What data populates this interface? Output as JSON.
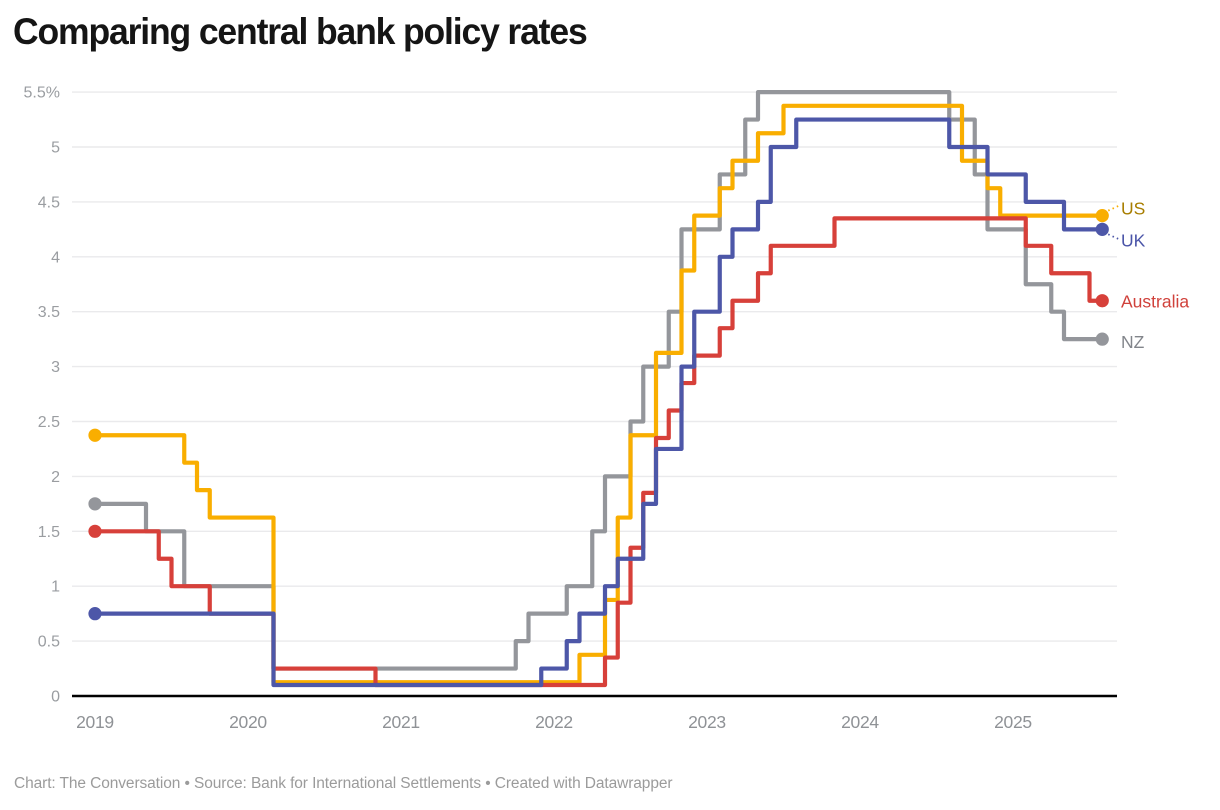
{
  "title": "Comparing central bank policy rates",
  "footer": "Chart: The Conversation • Source: Bank for International Settlements • Created with Datawrapper",
  "chart_data": {
    "type": "line",
    "subtype": "step",
    "title": "Comparing central bank policy rates",
    "unit": "%",
    "grid": true,
    "grid_color": "#eaeaec",
    "axis_color": "#000000",
    "tick_label_color": "#9a9da1",
    "x_domain_start": {
      "year": 2019,
      "month": 1
    },
    "x_domain_end": {
      "year": 2025,
      "month": 8
    },
    "ylim": [
      0,
      5.5
    ],
    "y_ticks": [
      {
        "value": 5.5,
        "label": "5.5%"
      },
      {
        "value": 5,
        "label": "5"
      },
      {
        "value": 4.5,
        "label": "4.5"
      },
      {
        "value": 4,
        "label": "4"
      },
      {
        "value": 3.5,
        "label": "3.5"
      },
      {
        "value": 3,
        "label": "3"
      },
      {
        "value": 2.5,
        "label": "2.5"
      },
      {
        "value": 2,
        "label": "2"
      },
      {
        "value": 1.5,
        "label": "1.5"
      },
      {
        "value": 1,
        "label": "1"
      },
      {
        "value": 0.5,
        "label": "0.5"
      },
      {
        "value": 0,
        "label": "0"
      }
    ],
    "x_ticks": [
      {
        "year": 2019,
        "label": "2019"
      },
      {
        "year": 2020,
        "label": "2020"
      },
      {
        "year": 2021,
        "label": "2021"
      },
      {
        "year": 2022,
        "label": "2022"
      },
      {
        "year": 2023,
        "label": "2023"
      },
      {
        "year": 2024,
        "label": "2024"
      },
      {
        "year": 2025,
        "label": "2025"
      }
    ],
    "legend_position": "right-of-line-ends",
    "series": [
      {
        "name": "US",
        "label": "US",
        "color": "#F9AE00",
        "label_color": "#A87E00",
        "z": 2,
        "points": [
          [
            2019,
            1,
            2.375
          ],
          [
            2019,
            8,
            2.125
          ],
          [
            2019,
            9,
            1.875
          ],
          [
            2019,
            10,
            1.625
          ],
          [
            2020,
            3,
            0.125
          ],
          [
            2022,
            3,
            0.375
          ],
          [
            2022,
            5,
            0.875
          ],
          [
            2022,
            6,
            1.625
          ],
          [
            2022,
            7,
            2.375
          ],
          [
            2022,
            9,
            3.125
          ],
          [
            2022,
            11,
            3.875
          ],
          [
            2022,
            12,
            4.375
          ],
          [
            2023,
            2,
            4.625
          ],
          [
            2023,
            3,
            4.875
          ],
          [
            2023,
            5,
            5.125
          ],
          [
            2023,
            7,
            5.375
          ],
          [
            2024,
            9,
            4.875
          ],
          [
            2024,
            11,
            4.625
          ],
          [
            2024,
            12,
            4.375
          ]
        ]
      },
      {
        "name": "UK",
        "label": "UK",
        "color": "#4D57A8",
        "label_color": "#4A54A8",
        "z": 4,
        "points": [
          [
            2019,
            1,
            0.75
          ],
          [
            2020,
            3,
            0.1
          ],
          [
            2021,
            12,
            0.25
          ],
          [
            2022,
            2,
            0.5
          ],
          [
            2022,
            3,
            0.75
          ],
          [
            2022,
            5,
            1.0
          ],
          [
            2022,
            6,
            1.25
          ],
          [
            2022,
            8,
            1.75
          ],
          [
            2022,
            9,
            2.25
          ],
          [
            2022,
            11,
            3.0
          ],
          [
            2022,
            12,
            3.5
          ],
          [
            2023,
            2,
            4.0
          ],
          [
            2023,
            3,
            4.25
          ],
          [
            2023,
            5,
            4.5
          ],
          [
            2023,
            6,
            5.0
          ],
          [
            2023,
            8,
            5.25
          ],
          [
            2024,
            8,
            5.0
          ],
          [
            2024,
            11,
            4.75
          ],
          [
            2025,
            2,
            4.5
          ],
          [
            2025,
            5,
            4.25
          ]
        ]
      },
      {
        "name": "Australia",
        "label": "Australia",
        "color": "#D7403A",
        "label_color": "#D0413B",
        "z": 3,
        "points": [
          [
            2019,
            1,
            1.5
          ],
          [
            2019,
            6,
            1.25
          ],
          [
            2019,
            7,
            1.0
          ],
          [
            2019,
            10,
            0.75
          ],
          [
            2020,
            3,
            0.25
          ],
          [
            2020,
            11,
            0.1
          ],
          [
            2022,
            5,
            0.35
          ],
          [
            2022,
            6,
            0.85
          ],
          [
            2022,
            7,
            1.35
          ],
          [
            2022,
            8,
            1.85
          ],
          [
            2022,
            9,
            2.35
          ],
          [
            2022,
            10,
            2.6
          ],
          [
            2022,
            11,
            2.85
          ],
          [
            2022,
            12,
            3.1
          ],
          [
            2023,
            2,
            3.35
          ],
          [
            2023,
            3,
            3.6
          ],
          [
            2023,
            5,
            3.85
          ],
          [
            2023,
            6,
            4.1
          ],
          [
            2023,
            11,
            4.35
          ],
          [
            2025,
            2,
            4.1
          ],
          [
            2025,
            4,
            3.85
          ],
          [
            2025,
            7,
            3.6
          ]
        ]
      },
      {
        "name": "NZ",
        "label": "NZ",
        "color": "#94969B",
        "label_color": "#82858B",
        "z": 1,
        "points": [
          [
            2019,
            1,
            1.75
          ],
          [
            2019,
            5,
            1.5
          ],
          [
            2019,
            8,
            1.0
          ],
          [
            2020,
            3,
            0.25
          ],
          [
            2021,
            10,
            0.5
          ],
          [
            2021,
            11,
            0.75
          ],
          [
            2022,
            2,
            1.0
          ],
          [
            2022,
            4,
            1.5
          ],
          [
            2022,
            5,
            2.0
          ],
          [
            2022,
            7,
            2.5
          ],
          [
            2022,
            8,
            3.0
          ],
          [
            2022,
            10,
            3.5
          ],
          [
            2022,
            11,
            4.25
          ],
          [
            2023,
            2,
            4.75
          ],
          [
            2023,
            4,
            5.25
          ],
          [
            2023,
            5,
            5.5
          ],
          [
            2024,
            8,
            5.25
          ],
          [
            2024,
            10,
            4.75
          ],
          [
            2024,
            11,
            4.25
          ],
          [
            2025,
            2,
            3.75
          ],
          [
            2025,
            4,
            3.5
          ],
          [
            2025,
            5,
            3.25
          ]
        ]
      }
    ]
  }
}
